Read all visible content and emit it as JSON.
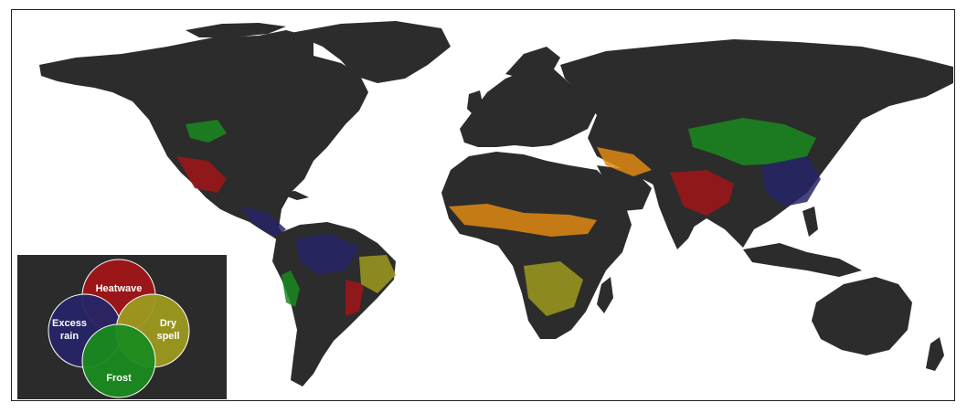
{
  "colors": {
    "land": "#2c2c2c",
    "ocean": "#ffffff",
    "heatwave": "#a01517",
    "excess_rain": "#262466",
    "dry_spell": "#9c9a1f",
    "frost": "#1a8a1f",
    "heat_dry": "#e08a12",
    "heat_rain": "#7a1a5c",
    "frost_dry": "#4fc21a",
    "frost_rain": "#1c6b5a"
  },
  "legend": {
    "heatwave": "Heatwave",
    "excess_rain_1": "Excess",
    "excess_rain_2": "rain",
    "dry_spell_1": "Dry",
    "dry_spell_2": "spell",
    "frost": "Frost"
  }
}
